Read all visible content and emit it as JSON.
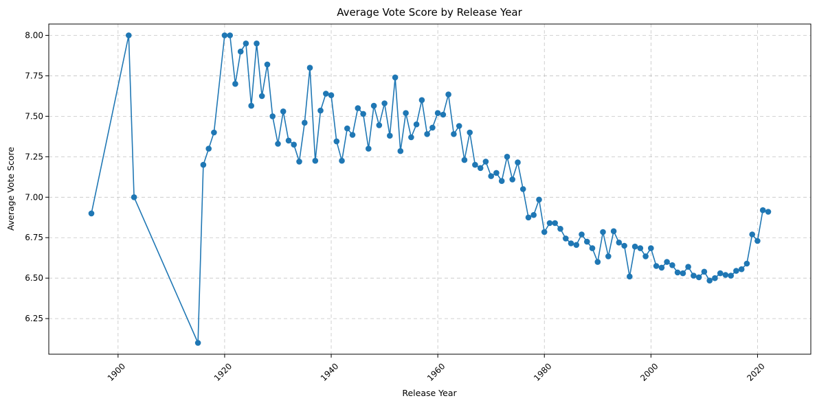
{
  "chart_data": {
    "type": "line",
    "title": "Average Vote Score by Release Year",
    "xlabel": "Release Year",
    "ylabel": "Average Vote Score",
    "xlim": [
      1887,
      2030
    ],
    "ylim": [
      6.03,
      8.07
    ],
    "xticks": [
      1900,
      1920,
      1940,
      1960,
      1980,
      2000,
      2020
    ],
    "yticks": [
      6.25,
      6.5,
      6.75,
      7.0,
      7.25,
      7.5,
      7.75,
      8.0
    ],
    "ytick_labels": [
      "6.25",
      "6.50",
      "6.75",
      "7.00",
      "7.25",
      "7.50",
      "7.75",
      "8.00"
    ],
    "grid": true,
    "line_color": "#1f77b4",
    "series": [
      {
        "x": [
          1895,
          1902,
          1903,
          1915,
          1916,
          1917,
          1918,
          1920,
          1921,
          1922,
          1923,
          1924,
          1925,
          1926,
          1927,
          1928,
          1929,
          1930,
          1931,
          1932,
          1933,
          1934,
          1935,
          1936,
          1937,
          1938,
          1939,
          1940,
          1941,
          1942,
          1943,
          1944,
          1945,
          1946,
          1947,
          1948,
          1949,
          1950,
          1951,
          1952,
          1953,
          1954,
          1955,
          1956,
          1957,
          1958,
          1959,
          1960,
          1961,
          1962,
          1963,
          1964,
          1965,
          1966,
          1967,
          1968,
          1969,
          1970,
          1971,
          1972,
          1973,
          1974,
          1975,
          1976,
          1977,
          1978,
          1979,
          1980,
          1981,
          1982,
          1983,
          1984,
          1985,
          1986,
          1987,
          1988,
          1989,
          1990,
          1991,
          1992,
          1993,
          1994,
          1995,
          1996,
          1997,
          1998,
          1999,
          2000,
          2001,
          2002,
          2003,
          2004,
          2005,
          2006,
          2007,
          2008,
          2009,
          2010,
          2011,
          2012,
          2013,
          2014,
          2015,
          2016,
          2017,
          2018,
          2019,
          2020,
          2021,
          2022
        ],
        "y": [
          6.9,
          8.0,
          7.0,
          6.1,
          7.2,
          7.3,
          7.4,
          8.0,
          8.0,
          7.7,
          7.9,
          7.95,
          7.565,
          7.95,
          7.625,
          7.82,
          7.5,
          7.33,
          7.53,
          7.35,
          7.325,
          7.22,
          7.46,
          7.8,
          7.225,
          7.535,
          7.64,
          7.63,
          7.345,
          7.225,
          7.425,
          7.385,
          7.55,
          7.515,
          7.3,
          7.565,
          7.445,
          7.58,
          7.38,
          7.74,
          7.285,
          7.52,
          7.37,
          7.45,
          7.6,
          7.39,
          7.43,
          7.52,
          7.51,
          7.635,
          7.39,
          7.44,
          7.23,
          7.4,
          7.2,
          7.18,
          7.22,
          7.13,
          7.15,
          7.1,
          7.25,
          7.11,
          7.215,
          7.05,
          6.875,
          6.89,
          6.985,
          6.785,
          6.84,
          6.84,
          6.805,
          6.745,
          6.715,
          6.705,
          6.77,
          6.725,
          6.685,
          6.6,
          6.785,
          6.635,
          6.79,
          6.72,
          6.7,
          6.51,
          6.695,
          6.685,
          6.635,
          6.685,
          6.575,
          6.565,
          6.6,
          6.58,
          6.535,
          6.53,
          6.57,
          6.515,
          6.505,
          6.54,
          6.485,
          6.5,
          6.53,
          6.52,
          6.515,
          6.545,
          6.555,
          6.59,
          6.77,
          6.73,
          6.92,
          6.91
        ]
      }
    ]
  }
}
